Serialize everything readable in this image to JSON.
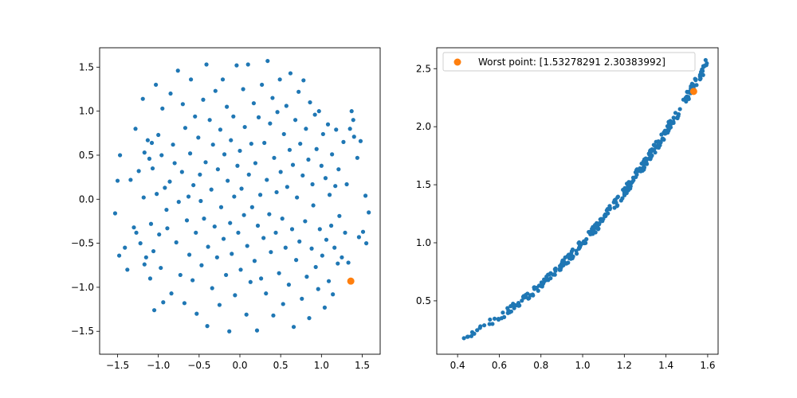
{
  "chart_data": [
    {
      "type": "scatter",
      "title": "",
      "xlabel": "",
      "ylabel": "",
      "xlim": [
        -1.72,
        1.72
      ],
      "ylim": [
        -1.76,
        1.72
      ],
      "xticks": [
        -1.5,
        -1.0,
        -0.5,
        0.0,
        0.5,
        1.0,
        1.5
      ],
      "xtick_labels": [
        "−1.5",
        "−1.0",
        "−0.5",
        "0.0",
        "0.5",
        "1.0",
        "1.5"
      ],
      "yticks": [
        -1.5,
        -1.0,
        -0.5,
        0.0,
        0.5,
        1.0,
        1.5
      ],
      "ytick_labels": [
        "−1.5",
        "−1.0",
        "−0.5",
        "0.0",
        "0.5",
        "1.0",
        "1.5"
      ],
      "grid": false,
      "series": [
        {
          "color": "#1f77b4",
          "marker": "dot",
          "points": [
            [
              -1.53,
              -0.16
            ],
            [
              -1.5,
              0.21
            ],
            [
              -1.47,
              0.5
            ],
            [
              -1.48,
              -0.64
            ],
            [
              -1.41,
              -0.55
            ],
            [
              -1.38,
              -0.8
            ],
            [
              -1.34,
              0.22
            ],
            [
              -1.28,
              0.8
            ],
            [
              -1.3,
              -0.32
            ],
            [
              -1.27,
              -0.38
            ],
            [
              -1.24,
              0.32
            ],
            [
              -1.22,
              -0.5
            ],
            [
              -1.19,
              1.14
            ],
            [
              -1.17,
              0.53
            ],
            [
              -1.18,
              0.02
            ],
            [
              -1.17,
              -0.74
            ],
            [
              -1.15,
              -0.66
            ],
            [
              -1.13,
              0.67
            ],
            [
              -1.11,
              0.46
            ],
            [
              -1.1,
              -0.9
            ],
            [
              -1.09,
              -0.28
            ],
            [
              -1.08,
              0.64
            ],
            [
              -1.07,
              0.35
            ],
            [
              -1.06,
              -0.59
            ],
            [
              -1.05,
              -1.26
            ],
            [
              -1.03,
              1.3
            ],
            [
              -1.02,
              0.06
            ],
            [
              -1.0,
              0.73
            ],
            [
              -0.99,
              -0.4
            ],
            [
              -0.97,
              -0.78
            ],
            [
              -0.96,
              0.5
            ],
            [
              -0.95,
              1.03
            ],
            [
              -0.94,
              -1.17
            ],
            [
              -0.92,
              0.13
            ],
            [
              -0.9,
              -0.12
            ],
            [
              -0.89,
              -0.33
            ],
            [
              -0.86,
              0.2
            ],
            [
              -0.85,
              1.2
            ],
            [
              -0.84,
              -1.07
            ],
            [
              -0.82,
              0.62
            ],
            [
              -0.8,
              0.41
            ],
            [
              -0.78,
              -0.49
            ],
            [
              -0.76,
              1.46
            ],
            [
              -0.75,
              -0.03
            ],
            [
              -0.73,
              -0.86
            ],
            [
              -0.71,
              0.31
            ],
            [
              -0.7,
              1.08
            ],
            [
              -0.68,
              -1.18
            ],
            [
              -0.67,
              0.81
            ],
            [
              -0.65,
              -0.24
            ],
            [
              -0.63,
              0.03
            ],
            [
              -0.62,
              -0.63
            ],
            [
              -0.61,
              0.52
            ],
            [
              -0.6,
              1.36
            ],
            [
              -0.58,
              -0.92
            ],
            [
              -0.57,
              0.16
            ],
            [
              -0.55,
              0.94
            ],
            [
              -0.54,
              -0.38
            ],
            [
              -0.53,
              -1.3
            ],
            [
              -0.51,
              0.7
            ],
            [
              -0.49,
              0.28
            ],
            [
              -0.48,
              -0.02
            ],
            [
              -0.47,
              -0.75
            ],
            [
              -0.45,
              1.13
            ],
            [
              -0.44,
              -0.22
            ],
            [
              -0.42,
              0.42
            ],
            [
              -0.41,
              1.53
            ],
            [
              -0.4,
              -1.44
            ],
            [
              -0.39,
              -0.54
            ],
            [
              -0.37,
              0.9
            ],
            [
              -0.35,
              0.11
            ],
            [
              -0.34,
              -1.01
            ],
            [
              -0.33,
              0.62
            ],
            [
              -0.31,
              -0.31
            ],
            [
              -0.3,
              1.23
            ],
            [
              -0.28,
              -0.66
            ],
            [
              -0.27,
              0.34
            ],
            [
              -0.25,
              -1.2
            ],
            [
              -0.24,
              0.79
            ],
            [
              -0.23,
              -0.09
            ],
            [
              -0.21,
              1.36
            ],
            [
              -0.2,
              -0.45
            ],
            [
              -0.19,
              0.51
            ],
            [
              -0.17,
              -0.86
            ],
            [
              -0.16,
              1.05
            ],
            [
              -0.15,
              0.21
            ],
            [
              -0.13,
              -1.5
            ],
            [
              -0.12,
              -0.27
            ],
            [
              -0.11,
              0.67
            ],
            [
              -0.1,
              -0.62
            ],
            [
              -0.08,
              0.94
            ],
            [
              -0.07,
              0.03
            ],
            [
              -0.06,
              -1.09
            ],
            [
              -0.04,
              1.52
            ],
            [
              -0.03,
              0.38
            ],
            [
              -0.02,
              -0.38
            ],
            [
              0.0,
              0.55
            ],
            [
              0.01,
              -0.8
            ],
            [
              0.02,
              0.12
            ],
            [
              0.04,
              1.25
            ],
            [
              0.05,
              -0.18
            ],
            [
              0.06,
              0.82
            ],
            [
              0.08,
              -1.31
            ],
            [
              0.09,
              -0.53
            ],
            [
              0.1,
              1.53
            ],
            [
              0.11,
              0.28
            ],
            [
              0.13,
              -0.94
            ],
            [
              0.14,
              0.63
            ],
            [
              0.15,
              -0.09
            ],
            [
              0.17,
              1.09
            ],
            [
              0.18,
              -0.7
            ],
            [
              0.19,
              0.41
            ],
            [
              0.21,
              -1.49
            ],
            [
              0.22,
              -0.3
            ],
            [
              0.23,
              0.93
            ],
            [
              0.25,
              0.05
            ],
            [
              0.26,
              -0.9
            ],
            [
              0.27,
              1.3
            ],
            [
              0.29,
              -0.44
            ],
            [
              0.3,
              0.64
            ],
            [
              0.32,
              -1.07
            ],
            [
              0.33,
              0.22
            ],
            [
              0.34,
              1.57
            ],
            [
              0.36,
              -0.17
            ],
            [
              0.37,
              0.86
            ],
            [
              0.38,
              -0.6
            ],
            [
              0.4,
              1.15
            ],
            [
              0.41,
              -1.32
            ],
            [
              0.42,
              0.47
            ],
            [
              0.44,
              -0.38
            ],
            [
              0.45,
              0.08
            ],
            [
              0.46,
              0.99
            ],
            [
              0.48,
              -0.84
            ],
            [
              0.49,
              1.36
            ],
            [
              0.5,
              0.31
            ],
            [
              0.52,
              -0.22
            ],
            [
              0.53,
              -1.19
            ],
            [
              0.54,
              0.74
            ],
            [
              0.56,
              -0.55
            ],
            [
              0.57,
              1.06
            ],
            [
              0.58,
              0.14
            ],
            [
              0.6,
              -0.97
            ],
            [
              0.61,
              0.56
            ],
            [
              0.62,
              1.43
            ],
            [
              0.64,
              -0.34
            ],
            [
              0.65,
              0.39
            ],
            [
              0.66,
              -1.45
            ],
            [
              0.68,
              0.9
            ],
            [
              0.69,
              -0.69
            ],
            [
              0.7,
              0.02
            ],
            [
              0.72,
              1.22
            ],
            [
              0.73,
              -0.48
            ],
            [
              0.74,
              0.63
            ],
            [
              0.76,
              -1.13
            ],
            [
              0.77,
              0.27
            ],
            [
              0.78,
              1.35
            ],
            [
              0.8,
              -0.25
            ],
            [
              0.81,
              0.8
            ],
            [
              0.82,
              -0.88
            ],
            [
              0.84,
              0.45
            ],
            [
              0.85,
              -1.35
            ],
            [
              0.86,
              1.1
            ],
            [
              0.88,
              -0.56
            ],
            [
              0.89,
              0.17
            ],
            [
              0.9,
              -0.07
            ],
            [
              0.92,
              0.96
            ],
            [
              0.93,
              -0.77
            ],
            [
              0.94,
              0.57
            ],
            [
              0.96,
              -1.02
            ],
            [
              0.97,
              1.0
            ],
            [
              0.98,
              -0.34
            ],
            [
              1.0,
              0.38
            ],
            [
              1.01,
              -0.64
            ],
            [
              1.02,
              0.74
            ],
            [
              1.04,
              -1.23
            ],
            [
              1.05,
              0.24
            ],
            [
              1.06,
              -0.46
            ],
            [
              1.08,
              0.85
            ],
            [
              1.09,
              -0.93
            ],
            [
              1.1,
              0.05
            ],
            [
              1.12,
              -0.3
            ],
            [
              1.13,
              0.51
            ],
            [
              1.14,
              -1.08
            ],
            [
              1.16,
              -0.55
            ],
            [
              1.17,
              0.15
            ],
            [
              1.18,
              0.79
            ],
            [
              1.2,
              -0.73
            ],
            [
              1.21,
              0.34
            ],
            [
              1.22,
              -0.19
            ],
            [
              1.25,
              -0.66
            ],
            [
              1.27,
              0.65
            ],
            [
              1.29,
              -0.38
            ],
            [
              1.31,
              0.17
            ],
            [
              1.33,
              -0.72
            ],
            [
              1.35,
              0.8
            ],
            [
              1.37,
              1.0
            ],
            [
              1.39,
              0.9
            ],
            [
              1.4,
              0.71
            ],
            [
              1.44,
              0.47
            ],
            [
              1.46,
              -0.43
            ],
            [
              1.48,
              0.66
            ],
            [
              1.51,
              -0.37
            ],
            [
              1.54,
              0.04
            ],
            [
              1.55,
              -0.5
            ],
            [
              1.58,
              -0.15
            ]
          ]
        },
        {
          "color": "#ff7f0e",
          "marker": "circle",
          "points": [
            [
              1.36,
              -0.93
            ]
          ]
        }
      ]
    },
    {
      "type": "scatter",
      "title": "",
      "xlabel": "",
      "ylabel": "",
      "xlim": [
        0.3,
        1.65
      ],
      "ylim": [
        0.04,
        2.68
      ],
      "xticks": [
        0.4,
        0.6,
        0.8,
        1.0,
        1.2,
        1.4,
        1.6
      ],
      "xtick_labels": [
        "0.4",
        "0.6",
        "0.8",
        "1.0",
        "1.2",
        "1.4",
        "1.6"
      ],
      "yticks": [
        0.5,
        1.0,
        1.5,
        2.0,
        2.5
      ],
      "ytick_labels": [
        "0.5",
        "1.0",
        "1.5",
        "2.0",
        "2.5"
      ],
      "grid": false,
      "legend_placement": "upper-left",
      "legend_entries": [
        "Worst point: [1.53278291 2.30383992]"
      ],
      "series": [
        {
          "color": "#1f77b4",
          "marker": "dot",
          "curve": {
            "x_from": 0.36,
            "x_to": 1.6,
            "count": 330,
            "exponent": 2,
            "noise": 0.035
          }
        },
        {
          "name": "Worst point: [1.53278291 2.30383992]",
          "color": "#ff7f0e",
          "marker": "circle",
          "points": [
            [
              1.53278291,
              2.30383992
            ]
          ]
        }
      ]
    }
  ]
}
